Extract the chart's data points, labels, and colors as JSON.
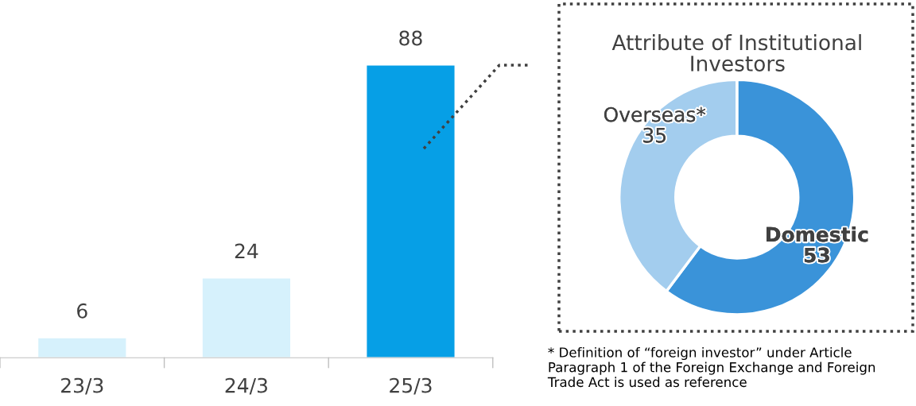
{
  "chart_data": [
    {
      "type": "bar",
      "categories": [
        "23/3",
        "24/3",
        "25/3"
      ],
      "values": [
        6,
        24,
        88
      ],
      "colors": [
        "#d6f1fc",
        "#d6f1fc",
        "#069fe6"
      ],
      "data_labels": true,
      "tick_labels": "x",
      "grid": false,
      "legend": false
    },
    {
      "type": "donut",
      "title": "Attribute of Institutional\nInvestors",
      "categories": [
        "Domestic",
        "Overseas*"
      ],
      "values": [
        53,
        35
      ],
      "colors": [
        "#3a93d9",
        "#a3cdee"
      ],
      "data_labels": true,
      "legend": false,
      "annotations": [
        "* Definition of “foreign investor” under Article Paragraph 1 of the Foreign Exchange and Foreign Trade Act is used as reference"
      ]
    }
  ]
}
